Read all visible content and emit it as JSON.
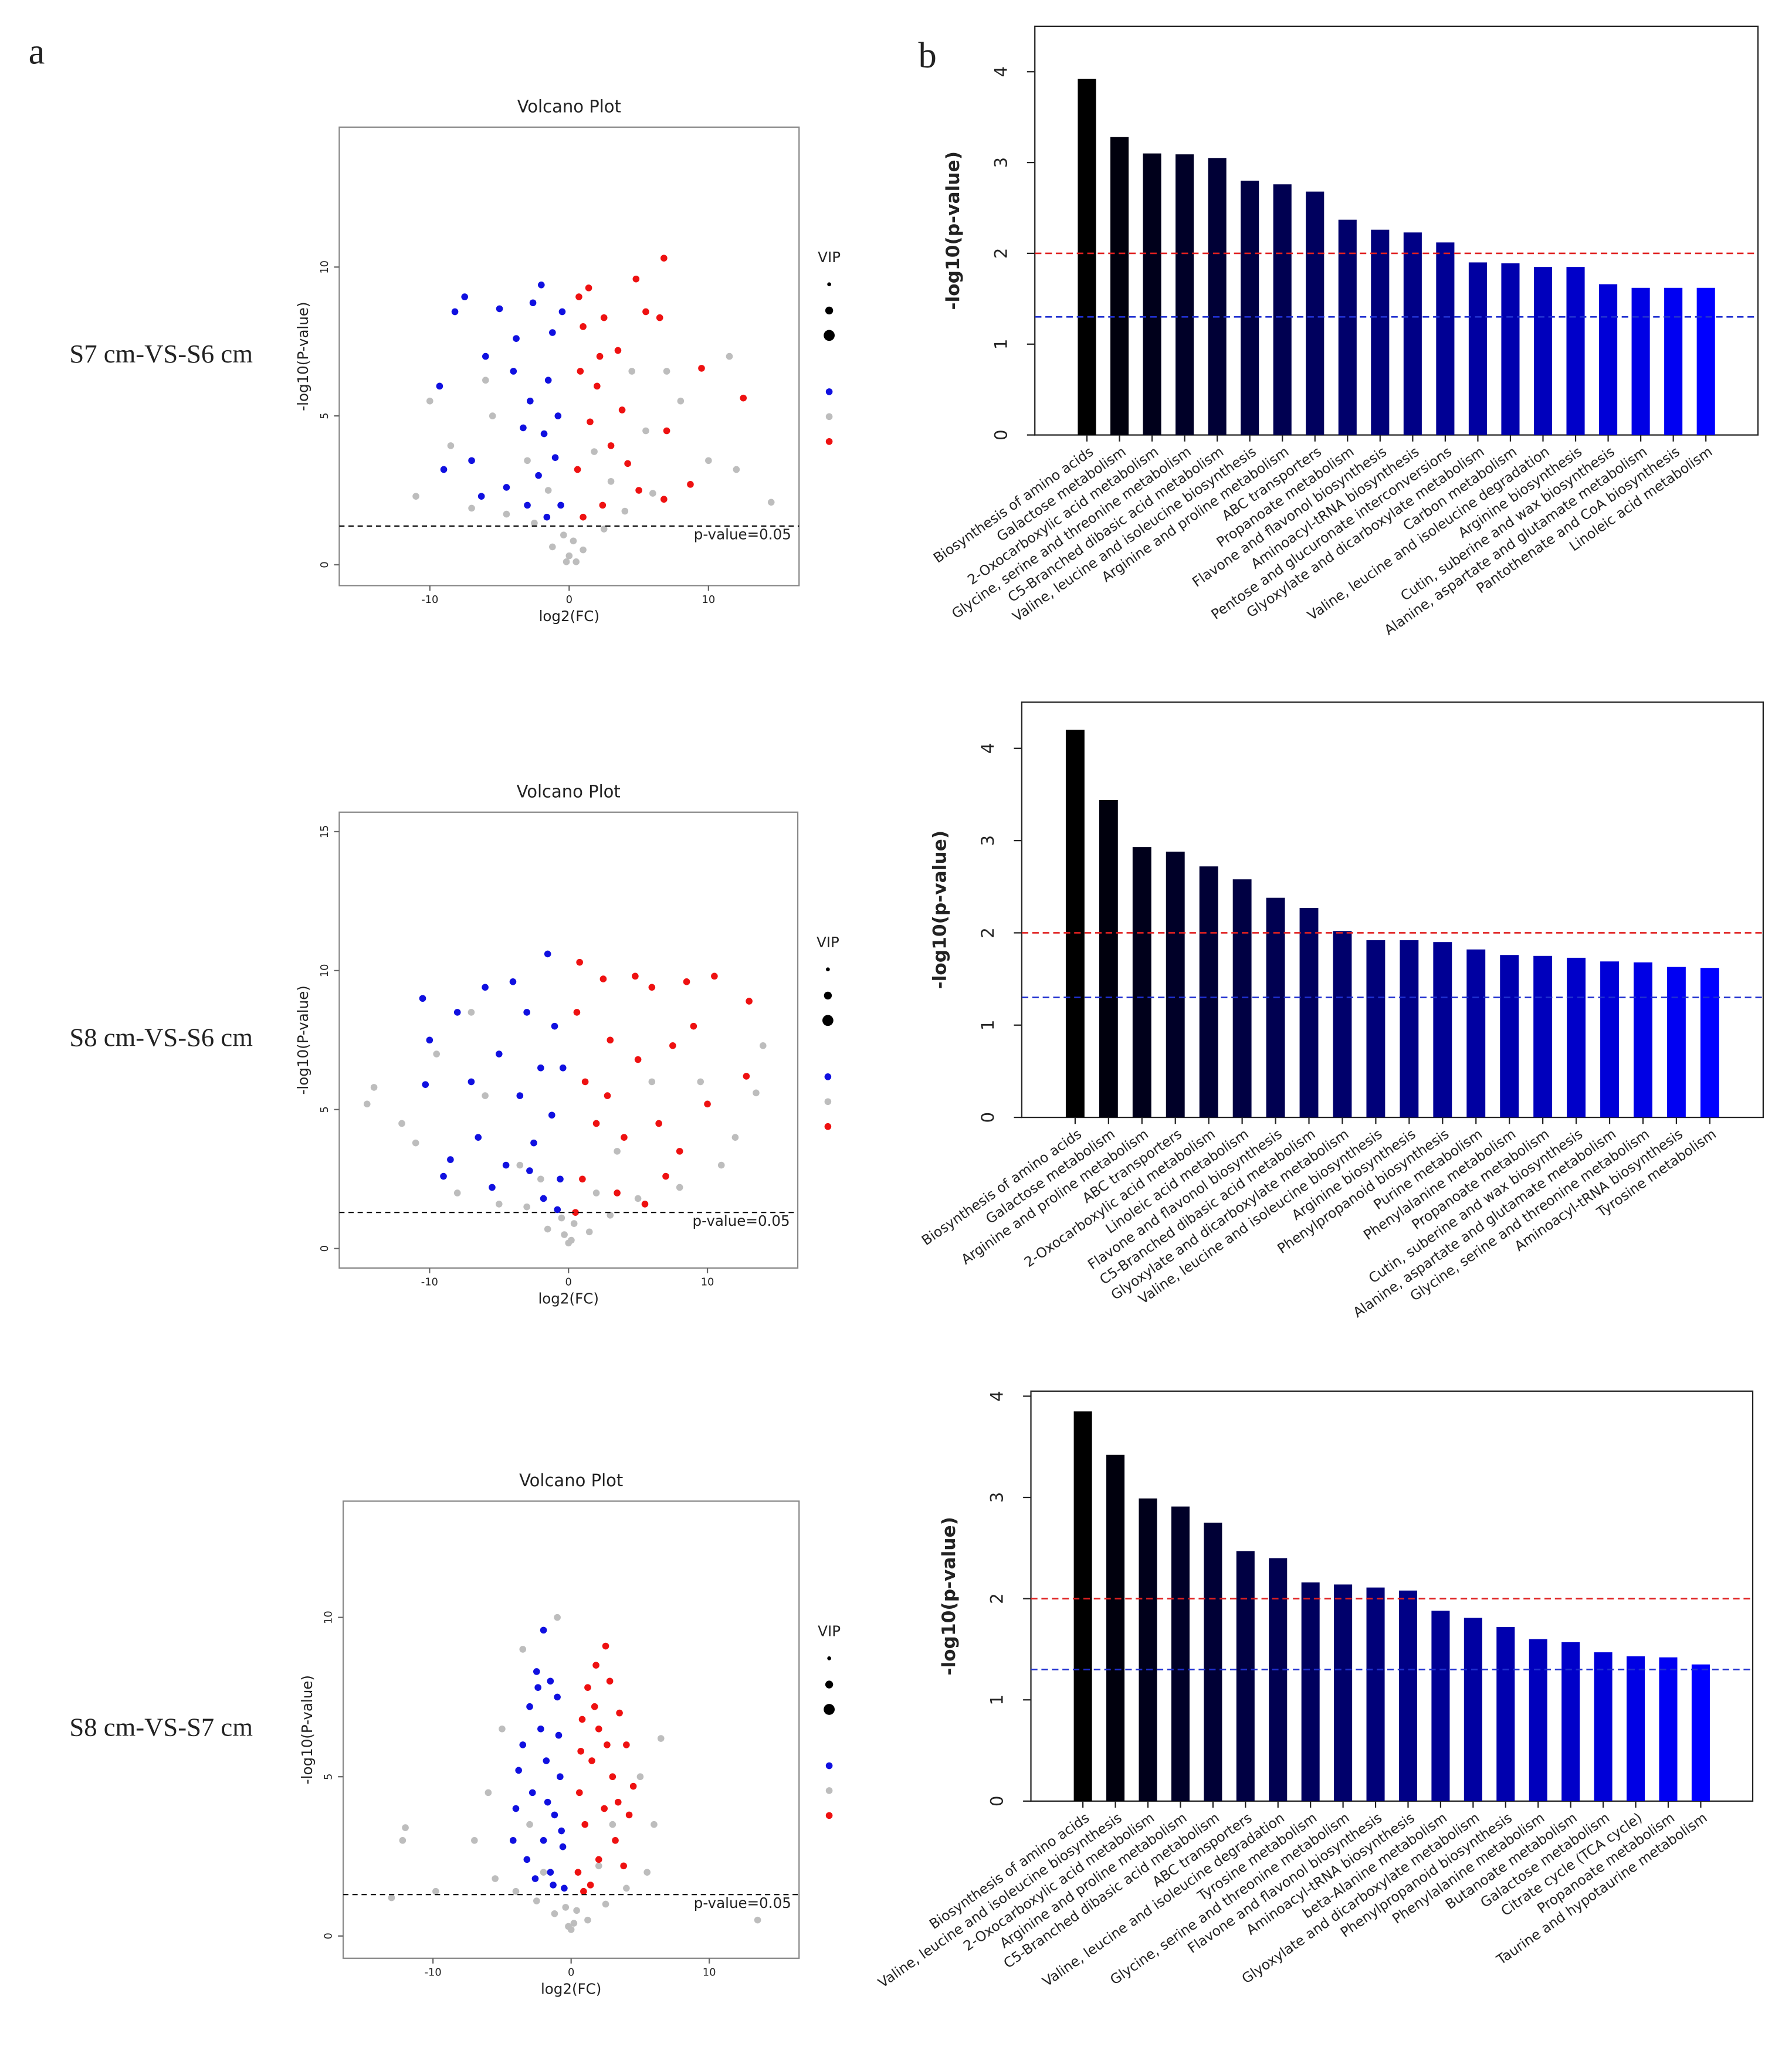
{
  "panel_labels": [
    "a",
    "b"
  ],
  "row_labels": [
    "S7 cm-VS-S6 cm",
    "S8 cm-VS-S6 cm",
    "S8 cm-VS-S7 cm"
  ],
  "chart_data": [
    {
      "type": "scatter",
      "title": "Volcano Plot",
      "x_label": "log2(FC)",
      "y_label": "-log10(P-value)",
      "xlim": [
        -16.5,
        16.5
      ],
      "xticks": [
        -10,
        0,
        10
      ],
      "ylim": [
        -0.7,
        14.7
      ],
      "yticks": [
        0,
        5,
        10
      ],
      "legend_title": "VIP",
      "hlines": [
        {
          "value": 1.3,
          "label": "p-value=0.05"
        }
      ],
      "series": [
        {
          "color": "#1010e0",
          "x": [
            -8.2,
            -7.5,
            -9.3,
            -6.0,
            -5.0,
            -4.0,
            -3.8,
            -2.6,
            -2.0,
            -1.2,
            -1.5,
            -2.8,
            -3.3,
            -0.8,
            -1.0,
            -2.2,
            -4.5,
            -6.3,
            -0.6,
            -1.6,
            -7.0,
            -9.0,
            -3.0,
            -0.5,
            -1.8
          ],
          "values": [
            8.5,
            9.0,
            6.0,
            7.0,
            8.6,
            6.5,
            7.6,
            8.8,
            9.4,
            7.8,
            6.2,
            5.5,
            4.6,
            5.0,
            3.6,
            3.0,
            2.6,
            2.3,
            2.0,
            1.6,
            3.5,
            3.2,
            2.0,
            8.5,
            4.4
          ]
        },
        {
          "color": "#bdbdbd",
          "x": [
            0,
            0.3,
            -0.4,
            1.0,
            -1.2,
            2.5,
            -2.5,
            4.0,
            -4.5,
            6.0,
            -7.0,
            10.0,
            14.5,
            -11.0,
            8.0,
            -8.5,
            5.5,
            -5.5,
            3.0,
            -3.0,
            1.8,
            -1.5,
            0.5,
            -0.2,
            12.0,
            -10.0,
            7.0,
            -6.0,
            11.5,
            4.5
          ],
          "values": [
            0.3,
            0.8,
            1.0,
            0.5,
            0.6,
            1.2,
            1.4,
            1.8,
            1.7,
            2.4,
            1.9,
            3.5,
            2.1,
            2.3,
            5.5,
            4.0,
            4.5,
            5.0,
            2.8,
            3.5,
            3.8,
            2.5,
            0.1,
            0.1,
            3.2,
            5.5,
            6.5,
            6.2,
            7.0,
            6.5
          ]
        },
        {
          "color": "#ee1111",
          "x": [
            6.8,
            4.8,
            1.4,
            2.5,
            1.0,
            3.5,
            0.8,
            2.0,
            5.5,
            6.5,
            9.5,
            12.5,
            1.5,
            3.0,
            0.6,
            4.2,
            6.8,
            8.7,
            2.4,
            1.0,
            5.0,
            0.7,
            3.8,
            7.0,
            2.2
          ],
          "values": [
            10.3,
            9.6,
            9.3,
            8.3,
            8.0,
            7.2,
            6.5,
            6.0,
            8.5,
            8.3,
            6.6,
            5.6,
            4.8,
            4.0,
            3.2,
            3.4,
            2.2,
            2.7,
            2.0,
            1.6,
            2.5,
            9.0,
            5.2,
            4.5,
            7.0
          ]
        }
      ]
    },
    {
      "type": "bar",
      "y_label": "-log10(p-value)",
      "ylim": [
        0,
        4.5
      ],
      "yticks": [
        0,
        1,
        2,
        3,
        4
      ],
      "hlines": [
        {
          "value": 2,
          "color": "#e02020"
        },
        {
          "value": 1.3,
          "color": "#2030d0"
        }
      ],
      "categories": [
        "Biosynthesis of amino acids",
        "Galactose metabolism",
        "2-Oxocarboxylic acid metabolism",
        "Glycine, serine and threonine metabolism",
        "C5-Branched dibasic acid metabolism",
        "Valine, leucine and isoleucine biosynthesis",
        "Arginine and proline metabolism",
        "ABC transporters",
        "Propanoate metabolism",
        "Flavone and flavonol biosynthesis",
        "Aminoacyl-tRNA biosynthesis",
        "Pentose and glucuronate interconversions",
        "Glyoxylate and dicarboxylate metabolism",
        "Carbon metabolism",
        "Valine, leucine and isoleucine degradation",
        "Arginine biosynthesis",
        "Cutin, suberine and wax biosynthesis",
        "Alanine, aspartate and glutamate metabolism",
        "Pantothenate and CoA biosynthesis",
        "Linoleic acid metabolism"
      ],
      "values": [
        3.92,
        3.28,
        3.1,
        3.09,
        3.05,
        2.8,
        2.76,
        2.68,
        2.37,
        2.26,
        2.23,
        2.12,
        1.9,
        1.89,
        1.85,
        1.85,
        1.66,
        1.62,
        1.62,
        1.62
      ],
      "colors": [
        "#000000",
        "#00000d",
        "#00001b",
        "#000028",
        "#000036",
        "#000043",
        "#000051",
        "#00005e",
        "#00006b",
        "#000079",
        "#000086",
        "#000094",
        "#0000a1",
        "#0000ae",
        "#0000bc",
        "#0000c9",
        "#0000d7",
        "#0000e4",
        "#0000f2",
        "#0000ff"
      ]
    },
    {
      "type": "scatter",
      "title": "Volcano Plot",
      "x_label": "log2(FC)",
      "y_label": "-log10(P-value)",
      "xlim": [
        -16.5,
        16.5
      ],
      "xticks": [
        -10,
        0,
        10
      ],
      "ylim": [
        -0.7,
        15.7
      ],
      "yticks": [
        0,
        5,
        10,
        15
      ],
      "legend_title": "VIP",
      "hlines": [
        {
          "value": 1.3,
          "label": "p-value=0.05"
        }
      ],
      "series": [
        {
          "color": "#1010e0",
          "x": [
            -10.5,
            -10.0,
            -10.3,
            -8.0,
            -6.0,
            -5.0,
            -4.0,
            -3.0,
            -1.5,
            -1.0,
            -2.0,
            -3.5,
            -6.5,
            -8.5,
            -9.0,
            -4.5,
            -2.5,
            -1.2,
            -0.6,
            -1.8,
            -0.4,
            -7.0,
            -5.5,
            -2.8,
            -0.8
          ],
          "values": [
            9.0,
            7.5,
            5.9,
            8.5,
            9.4,
            7.0,
            9.6,
            8.5,
            10.6,
            8.0,
            6.5,
            5.5,
            4.0,
            3.2,
            2.6,
            3.0,
            3.8,
            4.8,
            2.5,
            1.8,
            6.5,
            6.0,
            2.2,
            2.8,
            1.4
          ]
        },
        {
          "color": "#bdbdbd",
          "x": [
            0,
            0.4,
            -0.5,
            1.5,
            -1.5,
            3.0,
            -3.0,
            5.0,
            -5.0,
            8.0,
            -8.0,
            11.0,
            -11.0,
            -14.0,
            -14.5,
            13.5,
            14.0,
            9.5,
            -9.5,
            6.0,
            -6.0,
            3.5,
            -3.5,
            2.0,
            -2.0,
            0.2,
            -0.3,
            -12.0,
            12.0,
            -7.0
          ],
          "values": [
            0.2,
            0.9,
            1.1,
            0.6,
            0.7,
            1.2,
            1.5,
            1.8,
            1.6,
            2.2,
            2.0,
            3.0,
            3.8,
            5.8,
            5.2,
            5.6,
            7.3,
            6.0,
            7.0,
            6.0,
            5.5,
            3.5,
            3.0,
            2.0,
            2.5,
            0.3,
            0.5,
            4.5,
            4.0,
            8.5
          ]
        },
        {
          "color": "#ee1111",
          "x": [
            0.8,
            2.5,
            4.8,
            6.0,
            8.5,
            10.5,
            9.0,
            13.0,
            12.8,
            7.5,
            5.0,
            3.0,
            1.2,
            2.0,
            4.0,
            6.5,
            8.0,
            10.0,
            1.0,
            3.5,
            5.5,
            0.6,
            2.8,
            7.0,
            0.5
          ],
          "values": [
            10.3,
            9.7,
            9.8,
            9.4,
            9.6,
            9.8,
            8.0,
            8.9,
            6.2,
            7.3,
            6.8,
            7.5,
            6.0,
            4.5,
            4.0,
            4.5,
            3.5,
            5.2,
            2.5,
            2.0,
            1.6,
            8.5,
            5.5,
            2.6,
            1.3
          ]
        }
      ]
    },
    {
      "type": "bar",
      "y_label": "-log10(p-value)",
      "ylim": [
        0,
        4.5
      ],
      "yticks": [
        0,
        1,
        2,
        3,
        4
      ],
      "hlines": [
        {
          "value": 2,
          "color": "#e02020"
        },
        {
          "value": 1.3,
          "color": "#2030d0"
        }
      ],
      "categories": [
        "Biosynthesis of amino acids",
        "Galactose metabolism",
        "Arginine and proline metabolism",
        "ABC transporters",
        "2-Oxocarboxylic acid metabolism",
        "Linoleic acid metabolism",
        "Flavone and flavonol biosynthesis",
        "C5-Branched dibasic acid metabolism",
        "Glyoxylate and dicarboxylate metabolism",
        "Valine, leucine and isoleucine biosynthesis",
        "Arginine biosynthesis",
        "Phenylpropanoid biosynthesis",
        "Purine metabolism",
        "Phenylalanine metabolism",
        "Propanoate metabolism",
        "Cutin, suberine and wax biosynthesis",
        "Alanine, aspartate and glutamate metabolism",
        "Glycine, serine and threonine metabolism",
        "Aminoacyl-tRNA biosynthesis",
        "Tyrosine metabolism"
      ],
      "values": [
        4.2,
        3.44,
        2.93,
        2.88,
        2.72,
        2.58,
        2.38,
        2.27,
        2.02,
        1.92,
        1.92,
        1.9,
        1.82,
        1.76,
        1.75,
        1.73,
        1.69,
        1.68,
        1.63,
        1.62
      ],
      "colors": [
        "#000000",
        "#00000d",
        "#00001b",
        "#000028",
        "#000036",
        "#000043",
        "#000051",
        "#00005e",
        "#00006b",
        "#000079",
        "#000086",
        "#000094",
        "#0000a1",
        "#0000ae",
        "#0000bc",
        "#0000c9",
        "#0000d7",
        "#0000e4",
        "#0000f2",
        "#0000ff"
      ]
    },
    {
      "type": "scatter",
      "title": "Volcano Plot",
      "x_label": "log2(FC)",
      "y_label": "-log10(P-value)",
      "xlim": [
        -16.5,
        16.5
      ],
      "xticks": [
        -10,
        0,
        10
      ],
      "ylim": [
        -0.7,
        13.65
      ],
      "yticks": [
        0,
        5,
        10
      ],
      "legend_title": "VIP",
      "hlines": [
        {
          "value": 1.3,
          "label": "p-value=0.05"
        }
      ],
      "series": [
        {
          "color": "#1010e0",
          "x": [
            -2.0,
            -2.5,
            -1.5,
            -3.0,
            -1.0,
            -2.2,
            -3.5,
            -1.8,
            -0.8,
            -2.8,
            -4.0,
            -1.2,
            -2.0,
            -0.6,
            -3.2,
            -1.5,
            -0.5,
            -2.6,
            -0.9,
            -1.7,
            -3.8,
            -0.7,
            -2.4,
            -1.3,
            -4.2
          ],
          "values": [
            9.6,
            8.3,
            8.0,
            7.2,
            7.5,
            6.5,
            6.0,
            5.5,
            5.0,
            4.5,
            4.0,
            3.8,
            3.0,
            2.8,
            2.4,
            2.0,
            1.5,
            1.8,
            6.3,
            4.2,
            5.2,
            3.3,
            7.8,
            1.6,
            3.0
          ]
        },
        {
          "color": "#bdbdbd",
          "x": [
            0,
            0.4,
            -0.4,
            1.2,
            -1.2,
            2.5,
            -2.5,
            4.0,
            -4.0,
            5.5,
            -5.5,
            6.5,
            -5.0,
            -6.0,
            5.0,
            -7.0,
            -12.0,
            -12.2,
            -9.8,
            -13.0,
            13.5,
            -3.5,
            -1.0,
            0.2,
            -0.2,
            3.0,
            -3.0,
            2.0,
            -2.0,
            6.0
          ],
          "values": [
            0.2,
            0.8,
            0.9,
            0.5,
            0.7,
            1.0,
            1.1,
            1.5,
            1.4,
            2.0,
            1.8,
            6.2,
            6.5,
            4.5,
            5.0,
            3.0,
            3.4,
            3.0,
            1.4,
            1.2,
            0.5,
            9.0,
            10.0,
            0.4,
            0.3,
            3.5,
            3.5,
            2.2,
            2.0,
            3.5
          ]
        },
        {
          "color": "#ee1111",
          "x": [
            2.5,
            1.8,
            1.2,
            2.8,
            3.5,
            0.8,
            2.0,
            4.0,
            1.5,
            3.0,
            0.6,
            2.4,
            4.5,
            1.0,
            3.2,
            2.0,
            0.5,
            1.4,
            3.8,
            0.9,
            2.6,
            1.7,
            4.2,
            0.7,
            3.4
          ],
          "values": [
            9.1,
            8.5,
            7.8,
            8.0,
            7.0,
            6.8,
            6.5,
            6.0,
            5.5,
            5.0,
            4.5,
            4.0,
            4.7,
            3.5,
            3.0,
            2.4,
            2.0,
            1.6,
            2.2,
            1.4,
            6.0,
            7.2,
            3.8,
            5.8,
            4.2
          ]
        }
      ]
    },
    {
      "type": "bar",
      "y_label": "-log10(p-value)",
      "ylim": [
        0,
        4.05
      ],
      "yticks": [
        0,
        1,
        2,
        3,
        4
      ],
      "hlines": [
        {
          "value": 2,
          "color": "#e02020"
        },
        {
          "value": 1.3,
          "color": "#2030d0"
        }
      ],
      "categories": [
        "Biosynthesis of amino acids",
        "Valine, leucine and isoleucine biosynthesis",
        "2-Oxocarboxylic acid metabolism",
        "Arginine and proline metabolism",
        "C5-Branched dibasic acid metabolism",
        "ABC transporters",
        "Valine, leucine and isoleucine degradation",
        "Tyrosine metabolism",
        "Glycine, serine and threonine metabolism",
        "Flavone and flavonol biosynthesis",
        "Aminoacyl-tRNA biosynthesis",
        "beta-Alanine metabolism",
        "Glyoxylate and dicarboxylate metabolism",
        "Phenylpropanoid biosynthesis",
        "Phenylalanine metabolism",
        "Butanoate metabolism",
        "Galactose metabolism",
        "Citrate cycle (TCA cycle)",
        "Propanoate metabolism",
        "Taurine and hypotaurine metabolism"
      ],
      "values": [
        3.85,
        3.42,
        2.99,
        2.91,
        2.75,
        2.47,
        2.4,
        2.16,
        2.14,
        2.11,
        2.08,
        1.88,
        1.81,
        1.72,
        1.6,
        1.57,
        1.47,
        1.43,
        1.42,
        1.35
      ],
      "colors": [
        "#000000",
        "#00000d",
        "#00001b",
        "#000028",
        "#000036",
        "#000043",
        "#000051",
        "#00005e",
        "#00006b",
        "#000079",
        "#000086",
        "#000094",
        "#0000a1",
        "#0000ae",
        "#0000bc",
        "#0000c9",
        "#0000d7",
        "#0000e4",
        "#0000f2",
        "#0000ff"
      ]
    }
  ]
}
